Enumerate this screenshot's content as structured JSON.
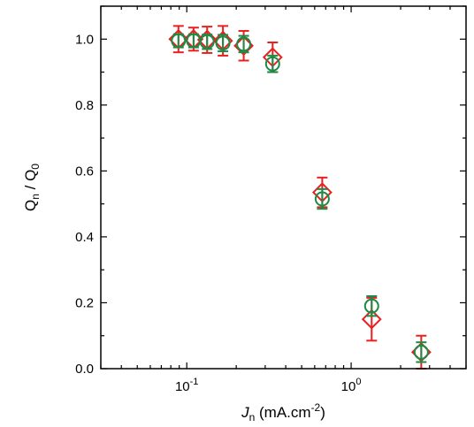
{
  "chart_data": {
    "type": "scatter",
    "xscale": "log",
    "xlim": [
      0.03,
      5.0
    ],
    "ylim": [
      0.0,
      1.1
    ],
    "grid": false,
    "xlabel": {
      "main": "J",
      "sub": "n",
      "rest": " (mA.cm",
      "sup": "-2",
      "end": ")"
    },
    "ylabel": {
      "q1": "Q",
      "s1": "n",
      "mid": " / Q",
      "s2": "0"
    },
    "x_ticks": [
      {
        "value": 0.1,
        "base": "10",
        "exp": "-1"
      },
      {
        "value": 1.0,
        "base": "10",
        "exp": "0"
      }
    ],
    "y_ticks": [
      {
        "value": 0.0,
        "label": "0.0"
      },
      {
        "value": 0.2,
        "label": "0.2"
      },
      {
        "value": 0.4,
        "label": "0.4"
      },
      {
        "value": 0.6,
        "label": "0.6"
      },
      {
        "value": 0.8,
        "label": "0.8"
      },
      {
        "value": 1.0,
        "label": "1.0"
      }
    ],
    "series": [
      {
        "marker": "diamond",
        "color": "#e8201f",
        "points": [
          {
            "x": 0.089,
            "y": 1.0,
            "err": 0.04
          },
          {
            "x": 0.11,
            "y": 1.0,
            "err": 0.035
          },
          {
            "x": 0.133,
            "y": 0.998,
            "err": 0.04
          },
          {
            "x": 0.166,
            "y": 0.995,
            "err": 0.045
          },
          {
            "x": 0.222,
            "y": 0.98,
            "err": 0.045
          },
          {
            "x": 0.333,
            "y": 0.945,
            "err": 0.045
          },
          {
            "x": 0.667,
            "y": 0.535,
            "err": 0.045
          },
          {
            "x": 1.333,
            "y": 0.15,
            "err": 0.065
          },
          {
            "x": 2.67,
            "y": 0.05,
            "err": 0.05
          }
        ]
      },
      {
        "marker": "circle",
        "color": "#1d8a45",
        "points": [
          {
            "x": 0.089,
            "y": 0.995,
            "err": 0.02
          },
          {
            "x": 0.11,
            "y": 0.995,
            "err": 0.02
          },
          {
            "x": 0.133,
            "y": 0.992,
            "err": 0.022
          },
          {
            "x": 0.166,
            "y": 0.988,
            "err": 0.025
          },
          {
            "x": 0.222,
            "y": 0.985,
            "err": 0.025
          },
          {
            "x": 0.333,
            "y": 0.925,
            "err": 0.025
          },
          {
            "x": 0.667,
            "y": 0.515,
            "err": 0.03
          },
          {
            "x": 1.333,
            "y": 0.19,
            "err": 0.03
          },
          {
            "x": 2.67,
            "y": 0.05,
            "err": 0.03
          }
        ]
      }
    ]
  }
}
